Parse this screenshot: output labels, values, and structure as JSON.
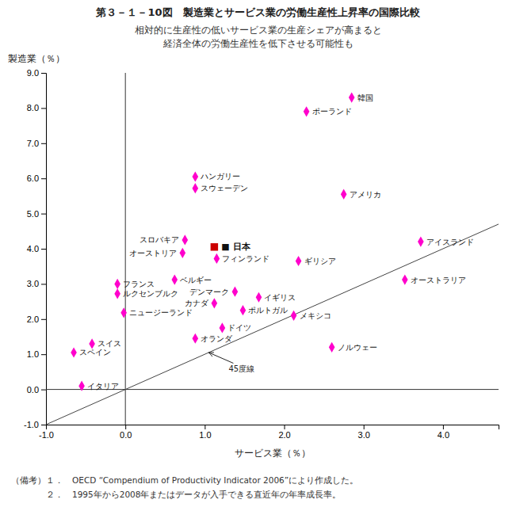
{
  "chart_data": {
    "type": "scatter",
    "title": "第３－１－10図　製造業とサービス業の労働生産性上昇率の国際比較",
    "subtitle": [
      "相対的に生産性の低いサービス業の生産シェアが高まると",
      "経済全体の労働生産性を低下させる可能性も"
    ],
    "xlabel": "サービス業（％）",
    "ylabel": "製造業（％）",
    "notes": [
      "（備考）１．　OECD “Compendium of Productivity Indicator 2006”により作成した。",
      "　　　　２．　1995年から2008年またはデータが入手できる直近年の年率成長率。"
    ],
    "xlim": [
      -1.0,
      4.7
    ],
    "ylim": [
      -1.0,
      9.0
    ],
    "xticks": [
      {
        "value": -1.0,
        "label": "-1.0"
      },
      {
        "value": 0.0,
        "label": "0.0"
      },
      {
        "value": 1.0,
        "label": "1.0"
      },
      {
        "value": 2.0,
        "label": "2.0"
      },
      {
        "value": 3.0,
        "label": "3.0"
      },
      {
        "value": 4.0,
        "label": "4.0"
      }
    ],
    "yticks": [
      {
        "value": -1.0,
        "label": "-1.0"
      },
      {
        "value": 0.0,
        "label": "0.0"
      },
      {
        "value": 1.0,
        "label": "1.0"
      },
      {
        "value": 2.0,
        "label": "2.0"
      },
      {
        "value": 3.0,
        "label": "3.0"
      },
      {
        "value": 4.0,
        "label": "4.0"
      },
      {
        "value": 5.0,
        "label": "5.0"
      },
      {
        "value": 6.0,
        "label": "6.0"
      },
      {
        "value": 7.0,
        "label": "7.0"
      },
      {
        "value": 8.0,
        "label": "8.0"
      },
      {
        "value": 9.0,
        "label": "9.0"
      }
    ],
    "grid": false,
    "series": [
      {
        "labels": [
          "韓国",
          "ポーランド",
          "ハンガリー",
          "スウェーデン",
          "アメリカ",
          "アイスランド",
          "スロバキア",
          "オーストリア",
          "フィンランド",
          "ギリシア",
          "オーストラリア",
          "フランス",
          "ルクセンブルク",
          "ベルギー",
          "デンマーク",
          "イギリス",
          "カナダ",
          "ポルトガル",
          "メキシコ",
          "ニュージーランド",
          "ドイツ",
          "オランダ",
          "ノルウェー",
          "スイス",
          "スペイン",
          "イタリア"
        ],
        "x": [
          2.85,
          2.28,
          0.88,
          0.88,
          2.75,
          3.72,
          0.75,
          0.72,
          1.15,
          2.18,
          3.52,
          -0.1,
          -0.1,
          0.62,
          1.38,
          1.68,
          1.12,
          1.48,
          2.12,
          -0.02,
          1.22,
          0.88,
          2.6,
          -0.42,
          -0.65,
          -0.55
        ],
        "values": [
          8.3,
          7.9,
          6.05,
          5.72,
          5.55,
          4.2,
          4.25,
          3.88,
          3.72,
          3.65,
          3.12,
          3.0,
          2.72,
          3.12,
          2.78,
          2.62,
          2.45,
          2.25,
          2.1,
          2.18,
          1.75,
          1.45,
          1.2,
          1.3,
          1.05,
          0.1
        ],
        "color": "#FF00CC",
        "marker": "diamond"
      },
      {
        "labels": [
          "■ 日本"
        ],
        "x": [
          1.12
        ],
        "values": [
          4.05
        ],
        "color": "#CC0000",
        "marker": "square"
      }
    ],
    "annotations": [
      {
        "text": "45度線",
        "x": 1.3,
        "y": 0.52,
        "arrow_x": 1.05,
        "arrow_y": 1.05
      }
    ]
  }
}
